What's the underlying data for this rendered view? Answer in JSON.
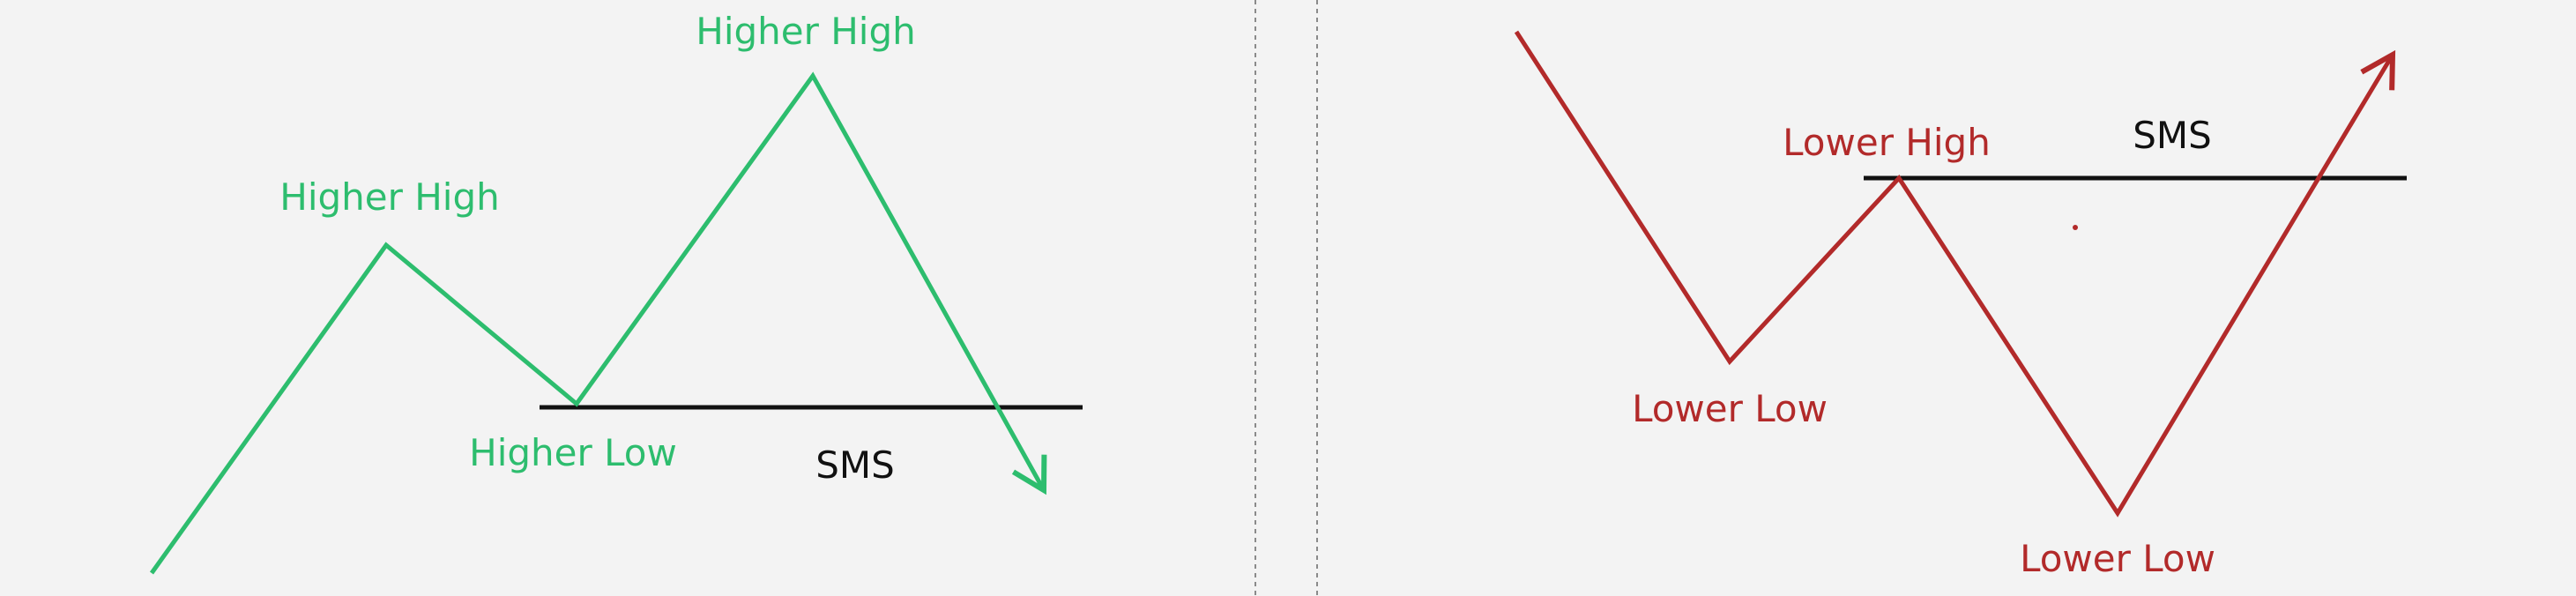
{
  "colors": {
    "background": "#f3f3f3",
    "bullish": "#2dbd6e",
    "bearish": "#b22a2a",
    "level": "#111111",
    "divider": "#8a8a8a"
  },
  "bullish_panel": {
    "labels": {
      "higher_high_1": "Higher High",
      "higher_high_2": "Higher High",
      "higher_low": "Higher Low",
      "sms": "SMS"
    },
    "arrow_direction": "down"
  },
  "bearish_panel": {
    "labels": {
      "lower_high": "Lower High",
      "lower_low_1": "Lower Low",
      "lower_low_2": "Lower Low",
      "sms": "SMS"
    },
    "arrow_direction": "up"
  }
}
